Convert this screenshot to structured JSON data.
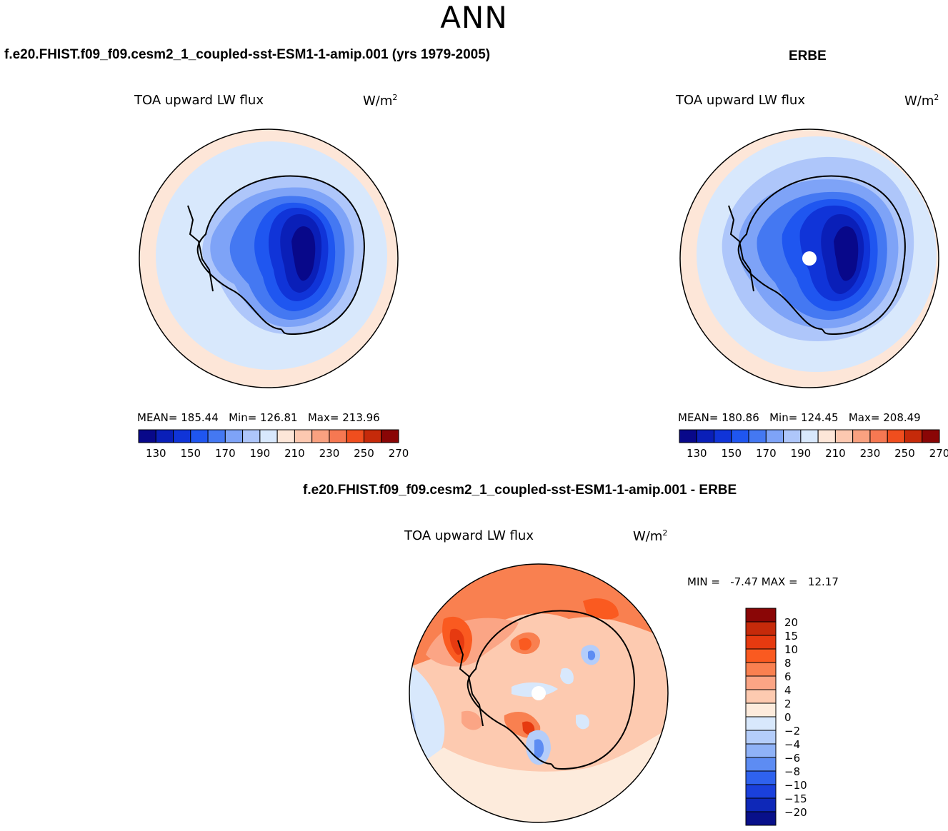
{
  "page": {
    "season": "ANN"
  },
  "panels": {
    "test": {
      "case_title": "f.e20.FHIST.f09_f09.cesm2_1_coupled-sst-ESM1-1-amip.001 (yrs 1979-2005)",
      "variable": "TOA upward LW flux",
      "units_base": "W/m",
      "units_exp": "2",
      "stats": {
        "mean_label": "MEAN=",
        "mean": "185.44",
        "min_label": "Min=",
        "min": "126.81",
        "max_label": "Max=",
        "max": "213.96"
      }
    },
    "obs": {
      "case_title": "ERBE",
      "variable": "TOA upward LW flux",
      "units_base": "W/m",
      "units_exp": "2",
      "stats": {
        "mean_label": "MEAN=",
        "mean": "180.86",
        "min_label": "Min=",
        "min": "124.45",
        "max_label": "Max=",
        "max": "208.49"
      }
    },
    "diff": {
      "case_title": "f.e20.FHIST.f09_f09.cesm2_1_coupled-sst-ESM1-1-amip.001 - ERBE",
      "variable": "TOA upward LW flux",
      "units_base": "W/m",
      "units_exp": "2",
      "minmax": "MIN =   -7.47 MAX =   12.17"
    }
  },
  "chart_data": [
    {
      "type": "heatmap",
      "title": "TOA upward LW flux",
      "subtitle": "f.e20.FHIST.f09_f09.cesm2_1_coupled-sst-ESM1-1-amip.001 (yrs 1979-2005)",
      "projection": "south polar stereographic",
      "units": "W/m^2",
      "mean": 185.44,
      "min": 126.81,
      "max": 213.96,
      "colorbar": {
        "orientation": "horizontal",
        "tick_labels": [
          "130",
          "150",
          "170",
          "190",
          "210",
          "230",
          "250",
          "270"
        ],
        "colors": [
          "#08088a",
          "#0a1fb8",
          "#1034d8",
          "#1f56f0",
          "#4478f2",
          "#7ea3f7",
          "#aec6fa",
          "#d8e8fc",
          "#fde6d8",
          "#fcc8b0",
          "#f9a180",
          "#f67852",
          "#f04e1e",
          "#c62a0a",
          "#8a0606"
        ]
      },
      "fields": {
        "ocean": "#d8e8fc",
        "outer_ring": "#fde6d8",
        "continent_min_color": "#08088a"
      }
    },
    {
      "type": "heatmap",
      "title": "TOA upward LW flux",
      "subtitle": "ERBE",
      "projection": "south polar stereographic",
      "units": "W/m^2",
      "mean": 180.86,
      "min": 124.45,
      "max": 208.49,
      "colorbar": {
        "orientation": "horizontal",
        "tick_labels": [
          "130",
          "150",
          "170",
          "190",
          "210",
          "230",
          "250",
          "270"
        ],
        "colors": [
          "#08088a",
          "#0a1fb8",
          "#1034d8",
          "#1f56f0",
          "#4478f2",
          "#7ea3f7",
          "#aec6fa",
          "#d8e8fc",
          "#fde6d8",
          "#fcc8b0",
          "#f9a180",
          "#f67852",
          "#f04e1e",
          "#c62a0a",
          "#8a0606"
        ]
      }
    },
    {
      "type": "heatmap",
      "title": "TOA upward LW flux",
      "subtitle": "f.e20.FHIST.f09_f09.cesm2_1_coupled-sst-ESM1-1-amip.001 - ERBE",
      "projection": "south polar stereographic",
      "units": "W/m^2",
      "min": -7.47,
      "max": 12.17,
      "colorbar": {
        "orientation": "vertical",
        "tick_labels": [
          "20",
          "15",
          "10",
          "8",
          "6",
          "4",
          "2",
          "0",
          "−2",
          "−4",
          "−6",
          "−8",
          "−10",
          "−15",
          "−20"
        ],
        "colors": [
          "#8a0606",
          "#c62a0a",
          "#e63a10",
          "#fa5a20",
          "#f98050",
          "#fba585",
          "#fdcab0",
          "#fdebdc",
          "#d8e8fc",
          "#b4cdfa",
          "#8fb2f7",
          "#5d8cf3",
          "#2f62ee",
          "#1a40dc",
          "#0e28b8",
          "#08108a"
        ]
      }
    }
  ]
}
